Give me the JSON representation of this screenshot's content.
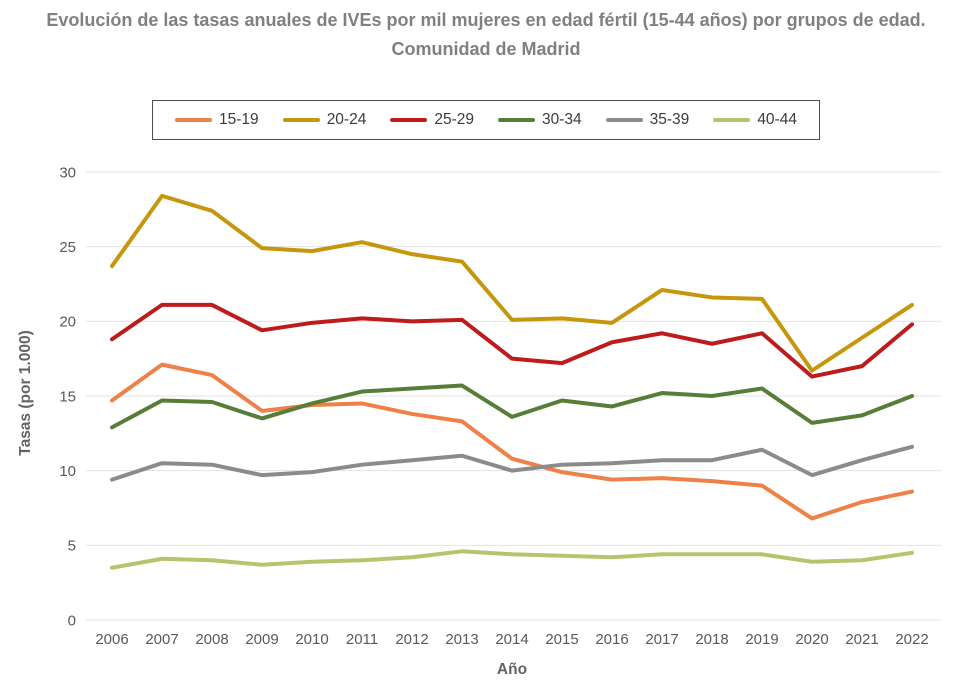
{
  "chart_data": {
    "type": "line",
    "title": "Evolución de las tasas anuales de IVEs por mil mujeres en edad fértil (15-44 años) por grupos de edad. Comunidad de Madrid",
    "xlabel": "Año",
    "ylabel": "Tasas (por 1.000)",
    "x": [
      "2006",
      "2007",
      "2008",
      "2009",
      "2010",
      "2011",
      "2012",
      "2013",
      "2014",
      "2015",
      "2016",
      "2017",
      "2018",
      "2019",
      "2020",
      "2021",
      "2022"
    ],
    "ylim": [
      0,
      30
    ],
    "yticks": [
      0,
      5,
      10,
      15,
      20,
      25,
      30
    ],
    "grid": "horizontal",
    "legend_position": "top-center",
    "series": [
      {
        "name": "15-19",
        "color": "#EE8147",
        "values": [
          14.7,
          17.1,
          16.4,
          14.0,
          14.4,
          14.5,
          13.8,
          13.3,
          10.8,
          9.9,
          9.4,
          9.5,
          9.3,
          9.0,
          6.8,
          7.9,
          8.6
        ]
      },
      {
        "name": "20-24",
        "color": "#C6960C",
        "values": [
          23.7,
          28.4,
          27.4,
          24.9,
          24.7,
          25.3,
          24.5,
          24.0,
          20.1,
          20.2,
          19.9,
          22.1,
          21.6,
          21.5,
          16.7,
          18.9,
          21.1
        ]
      },
      {
        "name": "25-29",
        "color": "#BE1C1C",
        "values": [
          18.8,
          21.1,
          21.1,
          19.4,
          19.9,
          20.2,
          20.0,
          20.1,
          17.5,
          17.2,
          18.6,
          19.2,
          18.5,
          19.2,
          16.3,
          17.0,
          19.8
        ]
      },
      {
        "name": "30-34",
        "color": "#567E38",
        "values": [
          12.9,
          14.7,
          14.6,
          13.5,
          14.5,
          15.3,
          15.5,
          15.7,
          13.6,
          14.7,
          14.3,
          15.2,
          15.0,
          15.5,
          13.2,
          13.7,
          15.0
        ]
      },
      {
        "name": "35-39",
        "color": "#8B8B8B",
        "values": [
          9.4,
          10.5,
          10.4,
          9.7,
          9.9,
          10.4,
          10.7,
          11.0,
          10.0,
          10.4,
          10.5,
          10.7,
          10.7,
          11.4,
          9.7,
          10.7,
          11.6
        ]
      },
      {
        "name": "40-44",
        "color": "#B6C46E",
        "values": [
          3.5,
          4.1,
          4.0,
          3.7,
          3.9,
          4.0,
          4.2,
          4.6,
          4.4,
          4.3,
          4.2,
          4.4,
          4.4,
          4.4,
          3.9,
          4.0,
          4.5
        ]
      }
    ],
    "colors": {
      "title_text": "#808080",
      "axis_tick_text": "#595959",
      "axis_title_text": "#636363",
      "gridline": "#E2E2E2",
      "legend_border": "#4D4D4D",
      "legend_text": "#3B3B3B",
      "background": "#FFFFFF"
    }
  }
}
